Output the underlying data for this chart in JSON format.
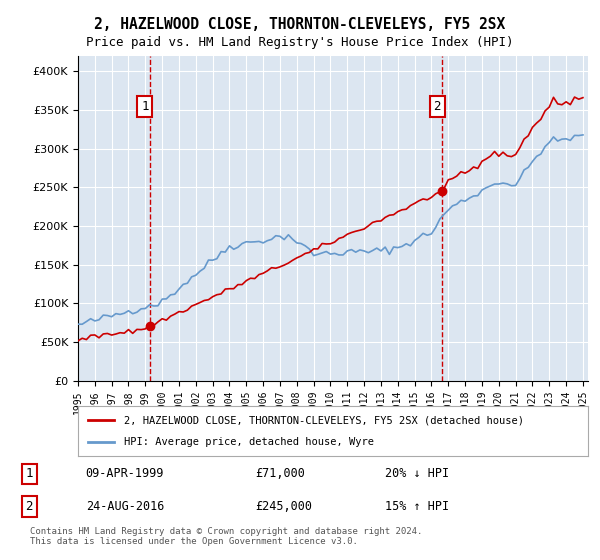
{
  "title": "2, HAZELWOOD CLOSE, THORNTON-CLEVELEYS, FY5 2SX",
  "subtitle": "Price paid vs. HM Land Registry's House Price Index (HPI)",
  "property_label": "2, HAZELWOOD CLOSE, THORNTON-CLEVELEYS, FY5 2SX (detached house)",
  "hpi_label": "HPI: Average price, detached house, Wyre",
  "footnote": "Contains HM Land Registry data © Crown copyright and database right 2024.\nThis data is licensed under the Open Government Licence v3.0.",
  "sale1_label": "09-APR-1999",
  "sale1_price": "£71,000",
  "sale1_hpi": "20% ↓ HPI",
  "sale1_year": 1999.27,
  "sale1_value": 71000,
  "sale2_label": "24-AUG-2016",
  "sale2_price": "£245,000",
  "sale2_hpi": "15% ↑ HPI",
  "sale2_year": 2016.64,
  "sale2_value": 245000,
  "property_color": "#cc0000",
  "hpi_color": "#6699cc",
  "background_color": "#dce6f1",
  "plot_bg": "#dce6f1",
  "ylim_min": 0,
  "ylim_max": 420000,
  "xlabel": "",
  "ylabel": ""
}
